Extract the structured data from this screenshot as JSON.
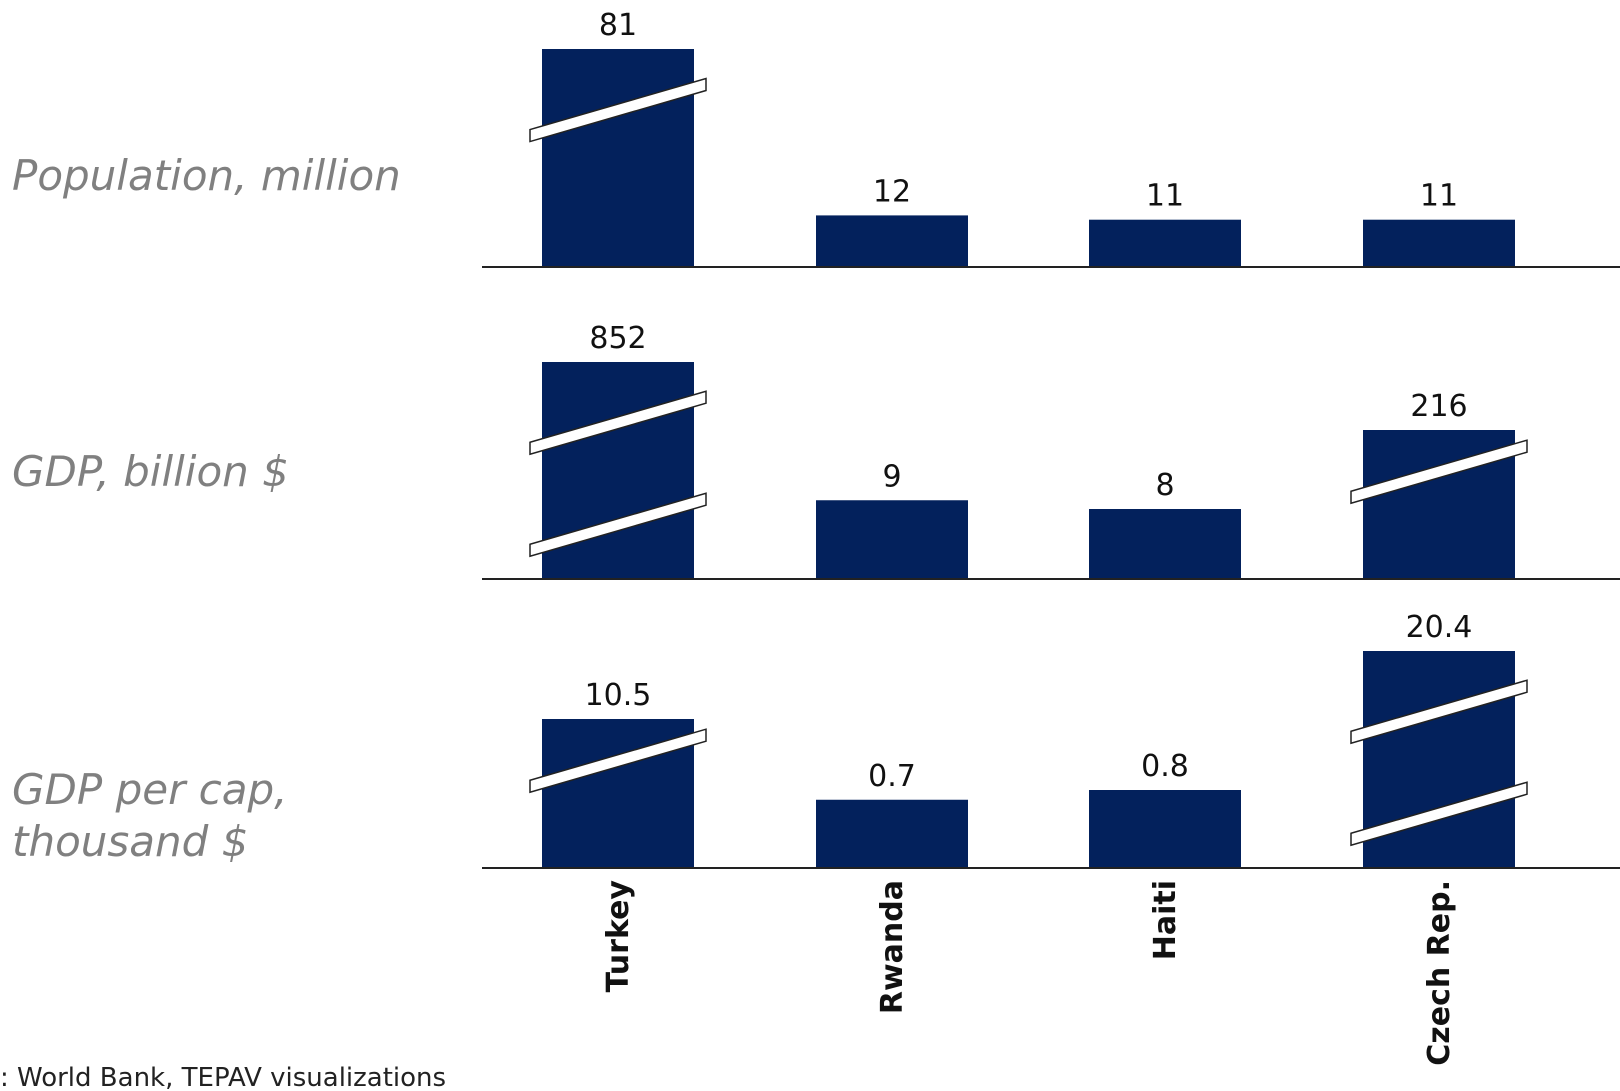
{
  "source": ": World Bank, TEPAV visualizations",
  "colors": {
    "bar": "#03215c",
    "axis": "#222222",
    "row_label": "#808080",
    "break": "#ffffff"
  },
  "chart_data": {
    "type": "bar",
    "categories": [
      "Turkey",
      "Rwanda",
      "Haiti",
      "Czech Rep."
    ],
    "panels": [
      {
        "title": "Population, million",
        "values": [
          81,
          12,
          11,
          11
        ],
        "value_labels": [
          "81",
          "12",
          "11",
          "11"
        ],
        "axis_breaks": [
          1,
          0,
          0,
          0
        ]
      },
      {
        "title": "GDP, billion $",
        "values": [
          852,
          9,
          8,
          216
        ],
        "value_labels": [
          "852",
          "9",
          "8",
          "216"
        ],
        "axis_breaks": [
          2,
          0,
          0,
          1
        ]
      },
      {
        "title": "GDP per cap,\nthousand $",
        "values": [
          10.5,
          0.7,
          0.8,
          20.4
        ],
        "value_labels": [
          "10.5",
          "0.7",
          "0.8",
          "20.4"
        ],
        "axis_breaks": [
          1,
          0,
          0,
          2
        ]
      }
    ]
  }
}
